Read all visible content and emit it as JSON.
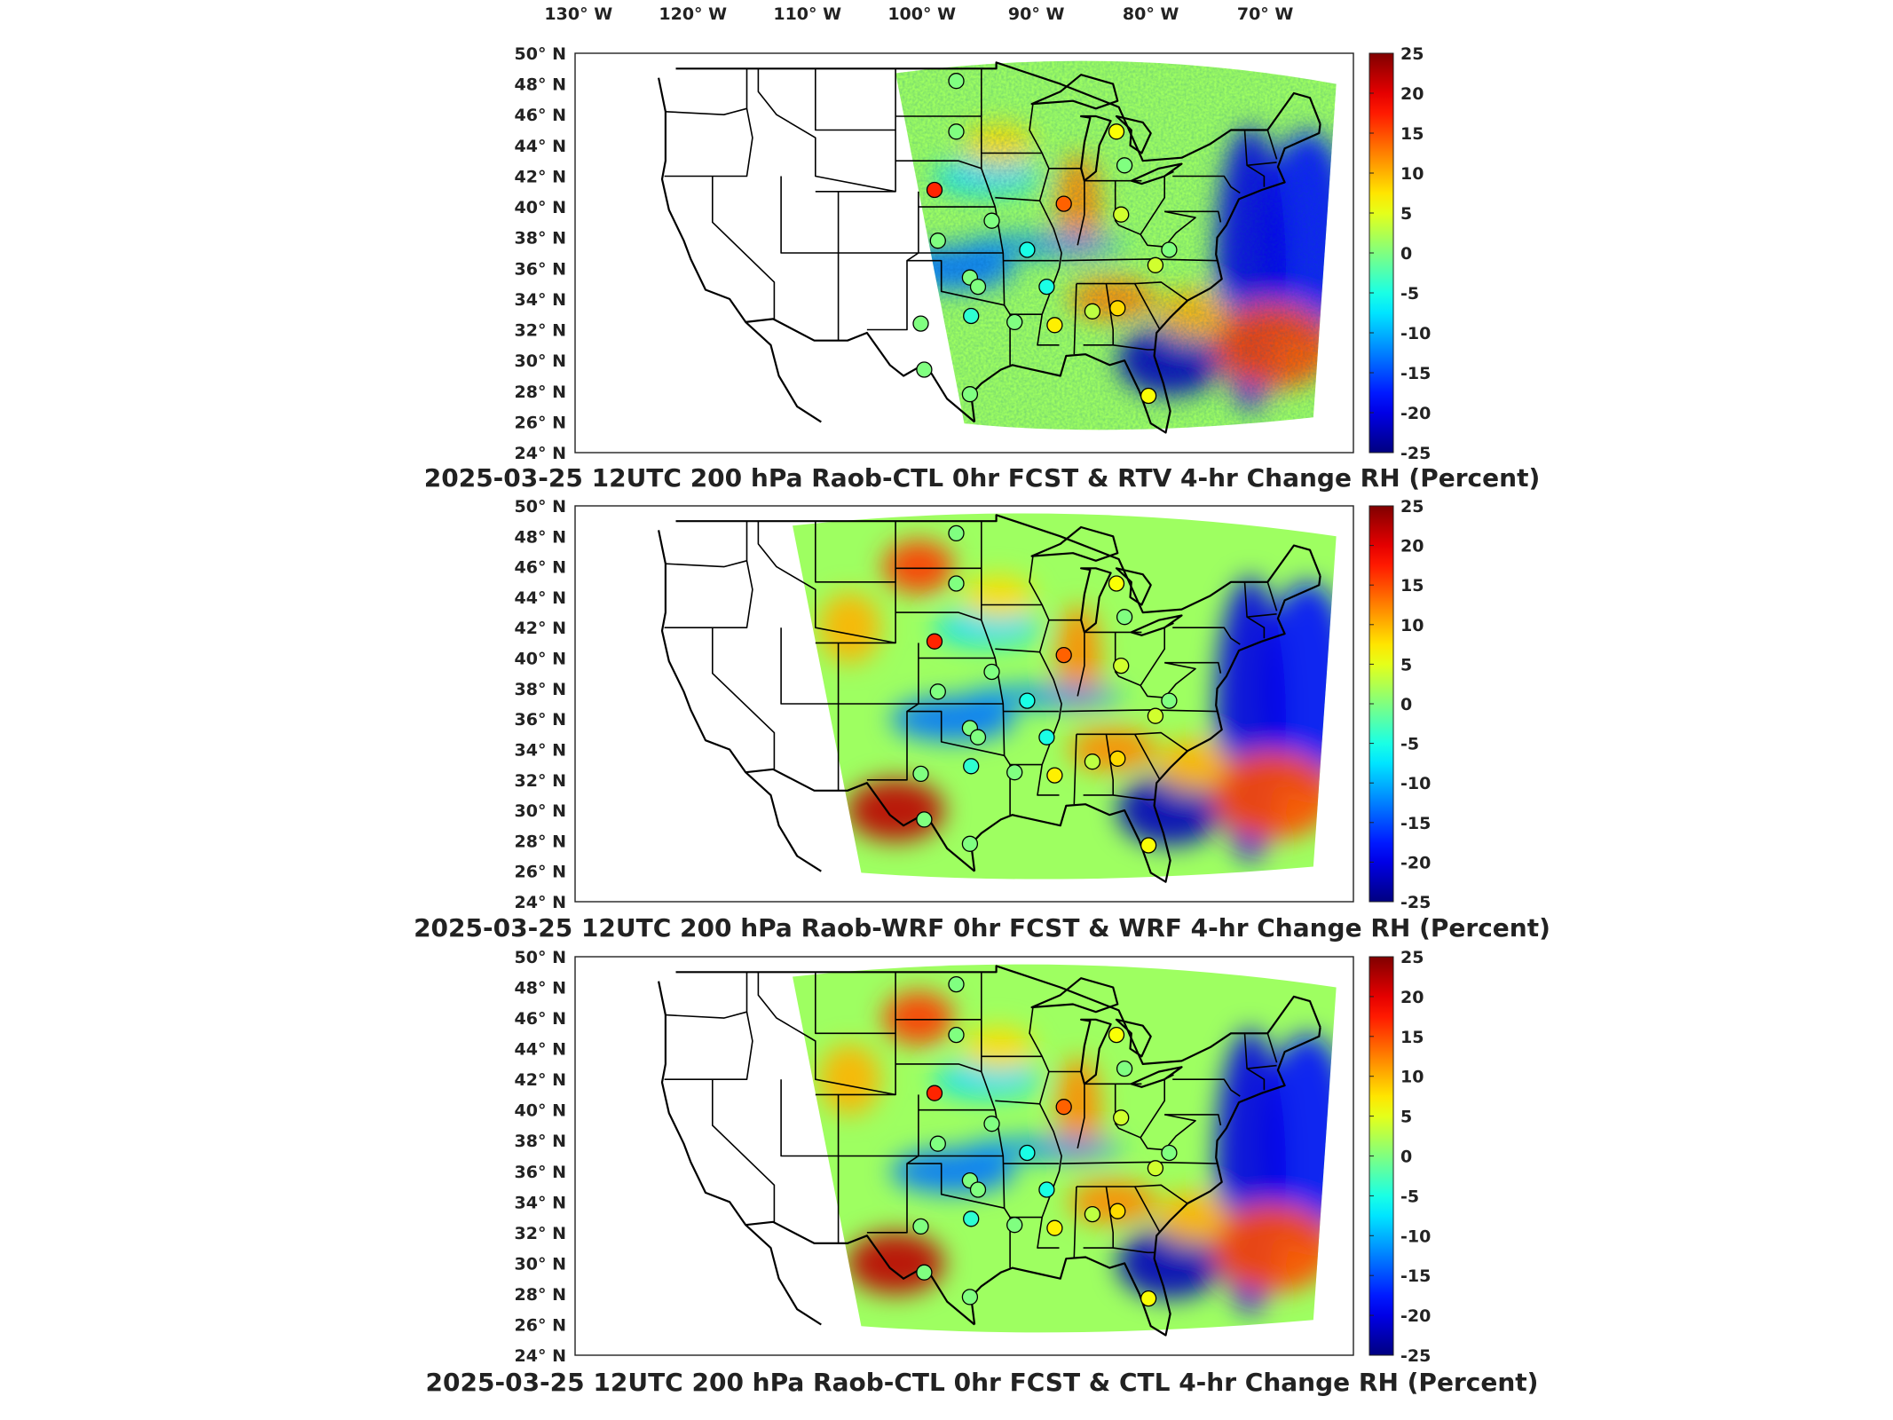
{
  "chart_data": [
    {
      "type": "heatmap",
      "title": "2025-03-25 12UTC 200 hPa Raob-CTL 0hr FCST & RTV 4-hr Change RH (Percent)",
      "top_axis_ticks": [
        "130° W",
        "120° W",
        "110° W",
        "100° W",
        "90° W",
        "80° W",
        "70° W"
      ],
      "y_ticks": [
        "50° N",
        "48° N",
        "46° N",
        "44° N",
        "42° N",
        "40° N",
        "38° N",
        "36° N",
        "34° N",
        "32° N",
        "30° N",
        "28° N",
        "26° N",
        "24° N"
      ],
      "xlim": [
        -132,
        -64
      ],
      "ylim": [
        24,
        50
      ],
      "colorbar": {
        "min": -25,
        "max": 25,
        "ticks": [
          "25",
          "20",
          "15",
          "10",
          "5",
          "0",
          "-5",
          "-10",
          "-15",
          "-20",
          "-25"
        ]
      },
      "field_west_edge_lon": -104,
      "stations": [
        {
          "lon": -98.7,
          "lat": 48.2,
          "value": 0
        },
        {
          "lon": -98.7,
          "lat": 44.9,
          "value": 0
        },
        {
          "lon": -84.7,
          "lat": 44.9,
          "value": 6
        },
        {
          "lon": -84.0,
          "lat": 42.7,
          "value": 0
        },
        {
          "lon": -100.6,
          "lat": 41.1,
          "value": 17
        },
        {
          "lon": -89.3,
          "lat": 40.2,
          "value": 14
        },
        {
          "lon": -84.3,
          "lat": 39.5,
          "value": 4
        },
        {
          "lon": -95.6,
          "lat": 39.1,
          "value": 0
        },
        {
          "lon": -100.3,
          "lat": 37.8,
          "value": 0
        },
        {
          "lon": -92.5,
          "lat": 37.2,
          "value": -5
        },
        {
          "lon": -80.1,
          "lat": 37.2,
          "value": 0
        },
        {
          "lon": -81.3,
          "lat": 36.2,
          "value": 4
        },
        {
          "lon": -97.5,
          "lat": 35.4,
          "value": 0
        },
        {
          "lon": -96.8,
          "lat": 34.8,
          "value": 0
        },
        {
          "lon": -90.8,
          "lat": 34.8,
          "value": -5
        },
        {
          "lon": -86.8,
          "lat": 33.2,
          "value": 3
        },
        {
          "lon": -84.6,
          "lat": 33.4,
          "value": 8
        },
        {
          "lon": -93.6,
          "lat": 32.5,
          "value": 0
        },
        {
          "lon": -97.4,
          "lat": 32.9,
          "value": -4
        },
        {
          "lon": -101.8,
          "lat": 32.4,
          "value": 0
        },
        {
          "lon": -90.1,
          "lat": 32.3,
          "value": 7
        },
        {
          "lon": -101.5,
          "lat": 29.4,
          "value": 0
        },
        {
          "lon": -97.5,
          "lat": 27.8,
          "value": 0
        },
        {
          "lon": -81.9,
          "lat": 27.7,
          "value": 6
        }
      ]
    },
    {
      "type": "heatmap",
      "title": "2025-03-25 12UTC 200 hPa Raob-WRF 0hr FCST & WRF 4-hr Change RH (Percent)",
      "y_ticks": [
        "50° N",
        "48° N",
        "46° N",
        "44° N",
        "42° N",
        "40° N",
        "38° N",
        "36° N",
        "34° N",
        "32° N",
        "30° N",
        "28° N",
        "26° N",
        "24° N"
      ],
      "xlim": [
        -132,
        -64
      ],
      "ylim": [
        24,
        50
      ],
      "colorbar": {
        "min": -25,
        "max": 25,
        "ticks": [
          "25",
          "20",
          "15",
          "10",
          "5",
          "0",
          "-5",
          "-10",
          "-15",
          "-20",
          "-25"
        ]
      },
      "field_west_edge_lon": -113,
      "stations": [
        {
          "lon": -98.7,
          "lat": 48.2,
          "value": 0
        },
        {
          "lon": -98.7,
          "lat": 44.9,
          "value": 0
        },
        {
          "lon": -84.7,
          "lat": 44.9,
          "value": 6
        },
        {
          "lon": -84.0,
          "lat": 42.7,
          "value": 0
        },
        {
          "lon": -100.6,
          "lat": 41.1,
          "value": 17
        },
        {
          "lon": -89.3,
          "lat": 40.2,
          "value": 14
        },
        {
          "lon": -84.3,
          "lat": 39.5,
          "value": 4
        },
        {
          "lon": -95.6,
          "lat": 39.1,
          "value": 0
        },
        {
          "lon": -100.3,
          "lat": 37.8,
          "value": 0
        },
        {
          "lon": -92.5,
          "lat": 37.2,
          "value": -5
        },
        {
          "lon": -80.1,
          "lat": 37.2,
          "value": 0
        },
        {
          "lon": -81.3,
          "lat": 36.2,
          "value": 4
        },
        {
          "lon": -97.5,
          "lat": 35.4,
          "value": 0
        },
        {
          "lon": -96.8,
          "lat": 34.8,
          "value": 0
        },
        {
          "lon": -90.8,
          "lat": 34.8,
          "value": -5
        },
        {
          "lon": -86.8,
          "lat": 33.2,
          "value": 3
        },
        {
          "lon": -84.6,
          "lat": 33.4,
          "value": 8
        },
        {
          "lon": -93.6,
          "lat": 32.5,
          "value": 0
        },
        {
          "lon": -97.4,
          "lat": 32.9,
          "value": -4
        },
        {
          "lon": -101.8,
          "lat": 32.4,
          "value": 0
        },
        {
          "lon": -90.1,
          "lat": 32.3,
          "value": 7
        },
        {
          "lon": -101.5,
          "lat": 29.4,
          "value": 0
        },
        {
          "lon": -97.5,
          "lat": 27.8,
          "value": 0
        },
        {
          "lon": -81.9,
          "lat": 27.7,
          "value": 6
        }
      ]
    },
    {
      "type": "heatmap",
      "title": "2025-03-25 12UTC 200 hPa Raob-CTL 0hr FCST & CTL 4-hr Change RH (Percent)",
      "y_ticks": [
        "50° N",
        "48° N",
        "46° N",
        "44° N",
        "42° N",
        "40° N",
        "38° N",
        "36° N",
        "34° N",
        "32° N",
        "30° N",
        "28° N",
        "26° N",
        "24° N"
      ],
      "xlim": [
        -132,
        -64
      ],
      "ylim": [
        24,
        50
      ],
      "colorbar": {
        "min": -25,
        "max": 25,
        "ticks": [
          "25",
          "20",
          "15",
          "10",
          "5",
          "0",
          "-5",
          "-10",
          "-15",
          "-20",
          "-25"
        ]
      },
      "field_west_edge_lon": -113,
      "stations": [
        {
          "lon": -98.7,
          "lat": 48.2,
          "value": 0
        },
        {
          "lon": -98.7,
          "lat": 44.9,
          "value": 0
        },
        {
          "lon": -84.7,
          "lat": 44.9,
          "value": 6
        },
        {
          "lon": -84.0,
          "lat": 42.7,
          "value": 0
        },
        {
          "lon": -100.6,
          "lat": 41.1,
          "value": 17
        },
        {
          "lon": -89.3,
          "lat": 40.2,
          "value": 14
        },
        {
          "lon": -84.3,
          "lat": 39.5,
          "value": 4
        },
        {
          "lon": -95.6,
          "lat": 39.1,
          "value": 0
        },
        {
          "lon": -100.3,
          "lat": 37.8,
          "value": 0
        },
        {
          "lon": -92.5,
          "lat": 37.2,
          "value": -5
        },
        {
          "lon": -80.1,
          "lat": 37.2,
          "value": 0
        },
        {
          "lon": -81.3,
          "lat": 36.2,
          "value": 4
        },
        {
          "lon": -97.5,
          "lat": 35.4,
          "value": 0
        },
        {
          "lon": -96.8,
          "lat": 34.8,
          "value": 0
        },
        {
          "lon": -90.8,
          "lat": 34.8,
          "value": -5
        },
        {
          "lon": -86.8,
          "lat": 33.2,
          "value": 3
        },
        {
          "lon": -84.6,
          "lat": 33.4,
          "value": 8
        },
        {
          "lon": -93.6,
          "lat": 32.5,
          "value": 0
        },
        {
          "lon": -97.4,
          "lat": 32.9,
          "value": -4
        },
        {
          "lon": -101.8,
          "lat": 32.4,
          "value": 0
        },
        {
          "lon": -90.1,
          "lat": 32.3,
          "value": 7
        },
        {
          "lon": -101.5,
          "lat": 29.4,
          "value": 0
        },
        {
          "lon": -97.5,
          "lat": 27.8,
          "value": 0
        },
        {
          "lon": -81.9,
          "lat": 27.7,
          "value": 6
        }
      ]
    }
  ]
}
